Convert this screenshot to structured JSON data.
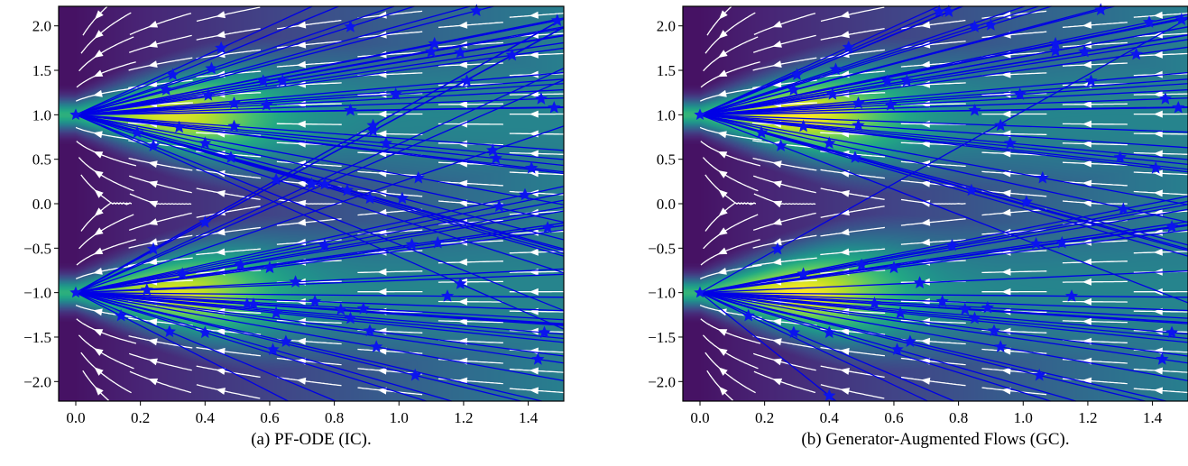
{
  "colors": {
    "trajectory": "#0000e6",
    "endpoint": "#0b14ee",
    "streamline": "#ffffff",
    "colormap": "viridis"
  },
  "chart_data": [
    {
      "type": "scatter",
      "caption": "(a) PF-ODE (IC).",
      "xlim": [
        -0.053,
        1.51
      ],
      "ylim": [
        -2.22,
        2.22
      ],
      "xticks": [
        "0.0",
        "0.2",
        "0.4",
        "0.6",
        "0.8",
        "1.0",
        "1.2",
        "1.4"
      ],
      "yticks": [
        "−2.0",
        "−1.5",
        "−1.0",
        "−0.5",
        "0.0",
        "0.5",
        "1.0",
        "1.5",
        "2.0"
      ],
      "grid": false,
      "background": "density heatmap (viridis) with streamlines",
      "sources": [
        [
          0,
          1
        ],
        [
          0,
          -1
        ]
      ],
      "endpoints_from_upper_source": [
        [
          1.24,
          2.17
        ],
        [
          1.49,
          2.06
        ],
        [
          0.85,
          1.99
        ],
        [
          0.45,
          1.75
        ],
        [
          1.11,
          1.8
        ],
        [
          1.1,
          1.71
        ],
        [
          1.19,
          1.7
        ],
        [
          1.35,
          1.67
        ],
        [
          0.42,
          1.52
        ],
        [
          0.3,
          1.45
        ],
        [
          0.28,
          1.28
        ],
        [
          0.41,
          1.22
        ],
        [
          0.58,
          1.38
        ],
        [
          0.64,
          1.38
        ],
        [
          1.21,
          1.38
        ],
        [
          0.99,
          1.23
        ],
        [
          0.49,
          1.13
        ],
        [
          0.59,
          1.11
        ],
        [
          1.44,
          1.18
        ],
        [
          1.48,
          1.08
        ],
        [
          0.85,
          1.05
        ],
        [
          0.32,
          0.86
        ],
        [
          0.49,
          0.87
        ],
        [
          0.4,
          0.68
        ],
        [
          0.24,
          0.65
        ],
        [
          0.19,
          0.8
        ],
        [
          0.96,
          0.68
        ],
        [
          0.48,
          0.52
        ],
        [
          1.3,
          0.51
        ],
        [
          1.41,
          0.4
        ],
        [
          1.06,
          0.29
        ],
        [
          0.62,
          0.27
        ],
        [
          0.84,
          0.15
        ],
        [
          0.91,
          0.06
        ],
        [
          1.01,
          0.06
        ],
        [
          1.19,
          -0.9
        ]
      ],
      "endpoints_from_lower_source": [
        [
          0.92,
          0.88
        ],
        [
          0.92,
          0.82
        ],
        [
          1.29,
          0.6
        ],
        [
          0.73,
          0.22
        ],
        [
          0.77,
          0.22
        ],
        [
          1.39,
          0.1
        ],
        [
          1.31,
          -0.03
        ],
        [
          0.4,
          -0.21
        ],
        [
          0.24,
          -0.51
        ],
        [
          0.51,
          -0.69
        ],
        [
          0.6,
          -0.72
        ],
        [
          0.77,
          -0.47
        ],
        [
          1.04,
          -0.46
        ],
        [
          1.12,
          -0.44
        ],
        [
          1.46,
          -0.27
        ],
        [
          0.68,
          -0.88
        ],
        [
          0.33,
          -0.79
        ],
        [
          1.15,
          -1.04
        ],
        [
          0.74,
          -1.1
        ],
        [
          0.82,
          -1.19
        ],
        [
          0.89,
          -1.18
        ],
        [
          0.85,
          -1.29
        ],
        [
          0.62,
          -1.23
        ],
        [
          0.53,
          -1.13
        ],
        [
          0.55,
          -1.13
        ],
        [
          0.22,
          -0.97
        ],
        [
          0.91,
          -1.43
        ],
        [
          0.93,
          -1.61
        ],
        [
          0.65,
          -1.55
        ],
        [
          0.61,
          -1.64
        ],
        [
          0.4,
          -1.45
        ],
        [
          0.29,
          -1.44
        ],
        [
          0.14,
          -1.26
        ],
        [
          1.45,
          -1.45
        ],
        [
          1.43,
          -1.75
        ],
        [
          1.05,
          -1.93
        ]
      ]
    },
    {
      "type": "scatter",
      "caption": "(b) Generator-Augmented Flows (GC).",
      "xlim": [
        -0.053,
        1.51
      ],
      "ylim": [
        -2.22,
        2.22
      ],
      "xticks": [
        "0.0",
        "0.2",
        "0.4",
        "0.6",
        "0.8",
        "1.0",
        "1.2",
        "1.4"
      ],
      "yticks": [
        "−2.0",
        "−1.5",
        "−1.0",
        "−0.5",
        "0.0",
        "0.5",
        "1.0",
        "1.5",
        "2.0"
      ],
      "grid": false,
      "background": "density heatmap (viridis) with streamlines",
      "sources": [
        [
          0,
          1
        ],
        [
          0,
          -1
        ]
      ],
      "endpoints_from_upper_source": [
        [
          0.74,
          2.16
        ],
        [
          0.77,
          2.16
        ],
        [
          1.24,
          2.18
        ],
        [
          1.49,
          2.07
        ],
        [
          1.39,
          2.04
        ],
        [
          0.85,
          1.99
        ],
        [
          0.9,
          2.01
        ],
        [
          0.46,
          1.76
        ],
        [
          1.1,
          1.8
        ],
        [
          1.1,
          1.72
        ],
        [
          1.19,
          1.71
        ],
        [
          1.35,
          1.68
        ],
        [
          0.42,
          1.51
        ],
        [
          0.3,
          1.45
        ],
        [
          0.29,
          1.28
        ],
        [
          0.41,
          1.23
        ],
        [
          0.58,
          1.38
        ],
        [
          0.64,
          1.38
        ],
        [
          1.21,
          1.38
        ],
        [
          0.99,
          1.23
        ],
        [
          0.49,
          1.13
        ],
        [
          0.59,
          1.11
        ],
        [
          1.44,
          1.18
        ],
        [
          1.48,
          1.08
        ],
        [
          0.85,
          1.05
        ],
        [
          0.32,
          0.87
        ],
        [
          0.49,
          0.88
        ],
        [
          0.93,
          0.88
        ],
        [
          0.4,
          0.68
        ],
        [
          0.25,
          0.65
        ],
        [
          0.19,
          0.8
        ],
        [
          0.96,
          0.68
        ],
        [
          0.48,
          0.52
        ],
        [
          1.3,
          0.52
        ],
        [
          1.41,
          0.4
        ],
        [
          1.06,
          0.29
        ],
        [
          0.84,
          0.15
        ],
        [
          1.01,
          0.02
        ]
      ],
      "endpoints_from_lower_source": [
        [
          1.31,
          -0.06
        ],
        [
          1.46,
          -0.26
        ],
        [
          0.24,
          -0.51
        ],
        [
          0.78,
          -0.47
        ],
        [
          1.04,
          -0.45
        ],
        [
          1.12,
          -0.44
        ],
        [
          0.5,
          -0.69
        ],
        [
          0.6,
          -0.72
        ],
        [
          0.32,
          -0.79
        ],
        [
          0.68,
          -0.89
        ],
        [
          1.15,
          -1.04
        ],
        [
          0.75,
          -1.1
        ],
        [
          0.82,
          -1.19
        ],
        [
          0.89,
          -1.17
        ],
        [
          0.85,
          -1.29
        ],
        [
          0.62,
          -1.23
        ],
        [
          0.54,
          -1.12
        ],
        [
          0.15,
          -1.26
        ],
        [
          0.29,
          -1.45
        ],
        [
          0.4,
          -1.45
        ],
        [
          0.65,
          -1.55
        ],
        [
          0.61,
          -1.64
        ],
        [
          0.91,
          -1.43
        ],
        [
          0.93,
          -1.61
        ],
        [
          1.46,
          -1.45
        ],
        [
          1.43,
          -1.75
        ],
        [
          1.05,
          -1.93
        ],
        [
          0.4,
          -2.16
        ]
      ]
    }
  ]
}
